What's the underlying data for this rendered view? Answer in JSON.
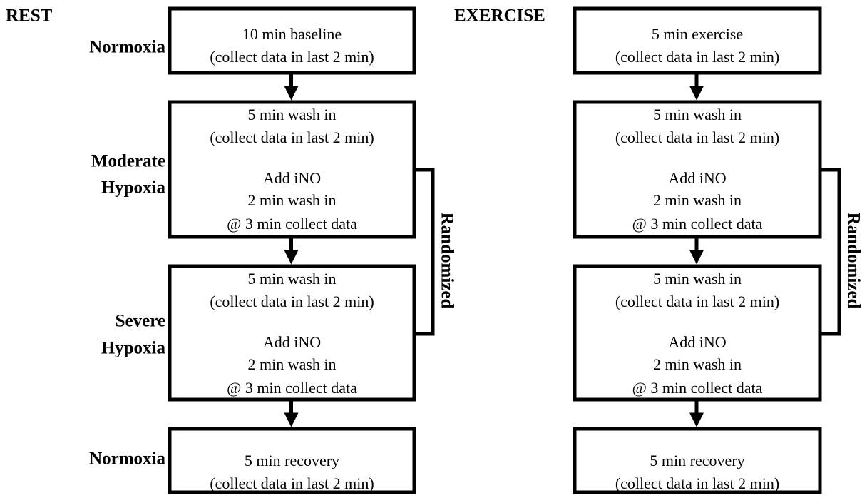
{
  "row_labels": [
    [
      "Normoxia"
    ],
    [
      "Moderate",
      "Hypoxia"
    ],
    [
      "Severe",
      "Hypoxia"
    ],
    [
      "Normoxia"
    ]
  ],
  "panels": [
    {
      "title": "REST",
      "boxes": [
        {
          "lines": [
            "10 min baseline",
            "(collect data in last 2 min)"
          ]
        },
        {
          "lines": [
            "5 min wash in",
            "(collect data in last 2 min)",
            "Add iNO",
            "2 min wash in",
            "@ 3 min collect data"
          ]
        },
        {
          "lines": [
            "5 min wash in",
            "(collect data in last 2 min)",
            "Add iNO",
            "2 min wash in",
            "@ 3 min collect data"
          ]
        },
        {
          "lines": [
            "5 min recovery",
            "(collect data in last 2 min)"
          ]
        }
      ],
      "bracket_label": "Randomized"
    },
    {
      "title": "EXERCISE",
      "boxes": [
        {
          "lines": [
            "5 min exercise",
            "(collect data in last 2 min)"
          ]
        },
        {
          "lines": [
            "5 min wash in",
            "(collect data in last 2 min)",
            "Add iNO",
            "2 min wash in",
            "@ 3 min collect data"
          ]
        },
        {
          "lines": [
            "5 min wash in",
            "(collect data in last 2 min)",
            "Add iNO",
            "2 min wash in",
            "@ 3 min collect data"
          ]
        },
        {
          "lines": [
            "5 min recovery",
            "(collect data in last 2 min)"
          ]
        }
      ],
      "bracket_label": "Randomized"
    }
  ]
}
